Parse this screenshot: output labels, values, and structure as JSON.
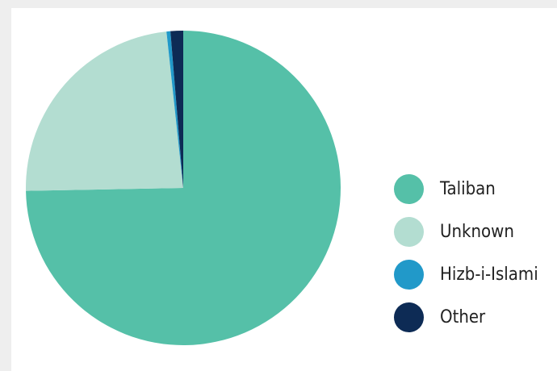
{
  "chart_data": {
    "type": "pie",
    "legend_position": "right",
    "slices": [
      {
        "label": "Taliban",
        "value": 74.7,
        "color": "#55c0a8"
      },
      {
        "label": "Unknown",
        "value": 23.6,
        "color": "#b3ddd1"
      },
      {
        "label": "Hizb-i-Islami",
        "value": 0.4,
        "color": "#2199c9"
      },
      {
        "label": "Other",
        "value": 1.3,
        "color": "#0d2b55"
      }
    ]
  }
}
